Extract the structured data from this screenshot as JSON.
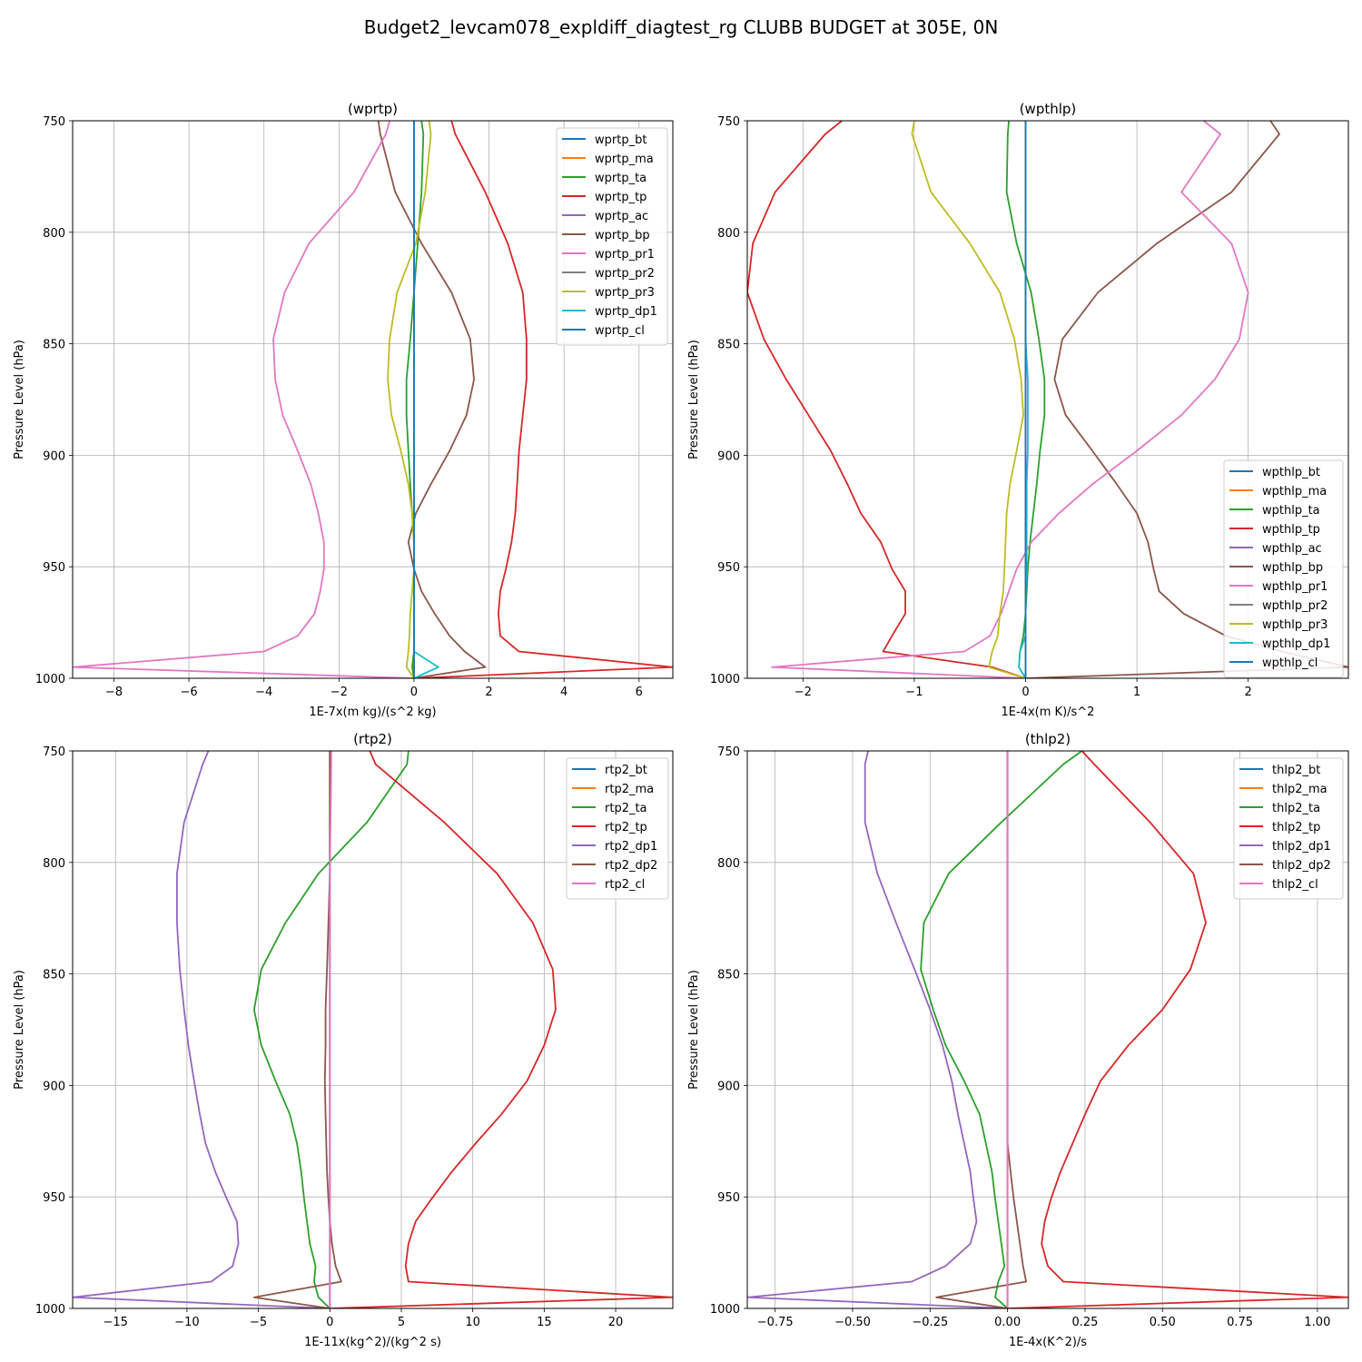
{
  "figure": {
    "suptitle": "Budget2_levcam078_expldiff_diagtest_rg CLUBB BUDGET at 305E, 0N"
  },
  "chart_data": [
    {
      "type": "line",
      "title": "(wprtp)",
      "xlabel": "1E-7x(m kg)/(s^2 kg)",
      "ylabel": "Pressure Level (hPa)",
      "xlim": [
        -9.1,
        6.9
      ],
      "ylim": [
        1000,
        750
      ],
      "xticks": [
        -8,
        -6,
        -4,
        -2,
        0,
        2,
        4,
        6
      ],
      "yticks": [
        750,
        800,
        850,
        900,
        950,
        1000
      ],
      "grid": true,
      "legend_position": "top-right",
      "y": [
        750,
        756,
        782,
        805,
        827,
        848,
        866,
        882,
        898,
        913,
        926,
        939,
        951,
        961,
        971,
        981,
        988,
        995,
        1000
      ],
      "series": [
        {
          "name": "wprtp_bt",
          "color": "#1f77b4",
          "values": [
            0,
            0,
            0,
            0,
            0,
            0,
            0,
            0,
            0,
            0,
            0,
            0,
            0,
            0,
            0,
            0,
            0,
            0,
            0
          ]
        },
        {
          "name": "wprtp_ma",
          "color": "#ff7f0e",
          "values": [
            0,
            0,
            0,
            0,
            0,
            0,
            0,
            0,
            0,
            0,
            0,
            0,
            0,
            0,
            0,
            0,
            0,
            0,
            0
          ]
        },
        {
          "name": "wprtp_ta",
          "color": "#2ca02c",
          "values": [
            0.2,
            0.25,
            0.2,
            0.1,
            0,
            -0.1,
            -0.2,
            -0.2,
            -0.15,
            -0.1,
            -0.05,
            0,
            0,
            0,
            0,
            0,
            0,
            -0.05,
            0
          ]
        },
        {
          "name": "wprtp_tp",
          "color": "#d62728",
          "values": [
            1.0,
            1.1,
            1.9,
            2.5,
            2.9,
            3.0,
            3.0,
            2.9,
            2.8,
            2.75,
            2.7,
            2.6,
            2.45,
            2.3,
            2.25,
            2.3,
            2.8,
            6.9,
            0
          ]
        },
        {
          "name": "wprtp_ac",
          "color": "#9467bd",
          "values": [
            0,
            0,
            0,
            0,
            0,
            0,
            0,
            0,
            0,
            0,
            0,
            0,
            0,
            0,
            0,
            0,
            0,
            0,
            0
          ]
        },
        {
          "name": "wprtp_bp",
          "color": "#8c564b",
          "values": [
            -0.95,
            -0.9,
            -0.5,
            0.2,
            1.0,
            1.5,
            1.6,
            1.4,
            0.95,
            0.45,
            0.05,
            -0.15,
            0,
            0.2,
            0.55,
            0.95,
            1.35,
            1.9,
            0
          ]
        },
        {
          "name": "wprtp_pr1",
          "color": "#e377c2",
          "values": [
            -0.65,
            -0.75,
            -1.6,
            -2.8,
            -3.45,
            -3.75,
            -3.7,
            -3.5,
            -3.1,
            -2.75,
            -2.55,
            -2.4,
            -2.4,
            -2.5,
            -2.65,
            -3.1,
            -4.0,
            -9.1,
            0
          ]
        },
        {
          "name": "wprtp_pr2",
          "color": "#7f7f7f",
          "values": [
            0,
            0,
            0,
            0,
            0,
            0,
            0,
            0,
            0,
            0,
            0,
            0,
            0,
            0,
            0,
            0,
            0,
            0,
            0
          ]
        },
        {
          "name": "wprtp_pr3",
          "color": "#bcbd22",
          "values": [
            0.4,
            0.45,
            0.3,
            0.05,
            -0.45,
            -0.65,
            -0.7,
            -0.6,
            -0.35,
            -0.15,
            -0.05,
            0,
            0,
            -0.05,
            -0.1,
            -0.12,
            -0.15,
            -0.2,
            0
          ]
        },
        {
          "name": "wprtp_dp1",
          "color": "#17becf",
          "values": [
            0,
            0,
            0,
            0,
            0,
            0,
            0,
            0,
            0,
            0,
            0,
            0,
            0,
            0,
            0,
            0,
            0,
            0.65,
            0
          ]
        },
        {
          "name": "wprtp_cl",
          "color": "#1f77b4",
          "values": [
            0,
            0,
            0,
            0,
            0,
            0,
            0,
            0,
            0,
            0,
            0,
            0,
            0,
            0,
            0,
            0,
            0,
            0,
            0
          ]
        }
      ]
    },
    {
      "type": "line",
      "title": "(wpthlp)",
      "xlabel": "1E-4x(m K)/s^2",
      "ylabel": "Pressure Level (hPa)",
      "xlim": [
        -2.5,
        2.9
      ],
      "ylim": [
        1000,
        750
      ],
      "xticks": [
        -2,
        -1,
        0,
        1,
        2
      ],
      "yticks": [
        750,
        800,
        850,
        900,
        950,
        1000
      ],
      "grid": true,
      "legend_position": "bottom-right",
      "y": [
        750,
        756,
        782,
        805,
        827,
        848,
        866,
        882,
        898,
        913,
        926,
        939,
        951,
        961,
        971,
        981,
        988,
        995,
        1000
      ],
      "series": [
        {
          "name": "wpthlp_bt",
          "color": "#1f77b4",
          "values": [
            0,
            0,
            0,
            0,
            0,
            0,
            0,
            0,
            0,
            0,
            0,
            0,
            0,
            0,
            0,
            0,
            0,
            0,
            0
          ]
        },
        {
          "name": "wpthlp_ma",
          "color": "#ff7f0e",
          "values": [
            0,
            0,
            0,
            0,
            0,
            0,
            0,
            0,
            0,
            0,
            0,
            0,
            0,
            0,
            0,
            0,
            0,
            0,
            0
          ]
        },
        {
          "name": "wpthlp_ta",
          "color": "#2ca02c",
          "values": [
            -0.15,
            -0.16,
            -0.17,
            -0.08,
            0.05,
            0.12,
            0.17,
            0.17,
            0.13,
            0.1,
            0.07,
            0.04,
            0.02,
            0.01,
            0,
            -0.02,
            -0.05,
            -0.06,
            0
          ]
        },
        {
          "name": "wpthlp_tp",
          "color": "#d62728",
          "values": [
            -1.65,
            -1.8,
            -2.25,
            -2.45,
            -2.5,
            -2.35,
            -2.15,
            -1.95,
            -1.75,
            -1.6,
            -1.48,
            -1.3,
            -1.2,
            -1.08,
            -1.08,
            -1.2,
            -1.28,
            -0.3,
            0
          ]
        },
        {
          "name": "wpthlp_ac",
          "color": "#9467bd",
          "values": [
            0,
            0,
            0,
            0,
            0,
            0,
            0,
            0,
            0,
            0,
            0,
            0,
            0,
            0,
            0,
            0,
            0,
            0,
            0
          ]
        },
        {
          "name": "wpthlp_bp",
          "color": "#8c564b",
          "values": [
            2.2,
            2.28,
            1.85,
            1.18,
            0.65,
            0.33,
            0.26,
            0.36,
            0.6,
            0.82,
            1.0,
            1.1,
            1.15,
            1.2,
            1.42,
            1.8,
            2.3,
            2.9,
            0
          ]
        },
        {
          "name": "wpthlp_pr1",
          "color": "#e377c2",
          "values": [
            1.6,
            1.75,
            1.4,
            1.85,
            2.0,
            1.92,
            1.7,
            1.4,
            1.0,
            0.6,
            0.3,
            0.05,
            -0.08,
            -0.15,
            -0.22,
            -0.32,
            -0.55,
            -2.28,
            0
          ]
        },
        {
          "name": "wpthlp_pr2",
          "color": "#7f7f7f",
          "values": [
            0,
            0,
            0,
            0,
            0,
            0,
            0,
            0,
            0,
            0,
            0,
            0,
            0,
            0,
            0,
            0,
            0,
            0,
            0
          ]
        },
        {
          "name": "wpthlp_pr3",
          "color": "#bcbd22",
          "values": [
            -1.0,
            -1.02,
            -0.85,
            -0.5,
            -0.23,
            -0.1,
            -0.04,
            -0.02,
            -0.08,
            -0.14,
            -0.17,
            -0.18,
            -0.19,
            -0.2,
            -0.23,
            -0.25,
            -0.3,
            -0.33,
            0
          ]
        },
        {
          "name": "wpthlp_dp1",
          "color": "#17becf",
          "values": [
            0,
            0,
            0,
            0,
            0,
            0,
            0.02,
            0.02,
            0.02,
            0.01,
            0.01,
            0.01,
            0.01,
            0,
            0,
            0,
            -0.05,
            -0.06,
            0
          ]
        },
        {
          "name": "wpthlp_cl",
          "color": "#1f77b4",
          "values": [
            0,
            0,
            0,
            0,
            0,
            0,
            0,
            0,
            0,
            0,
            0,
            0,
            0,
            0,
            0,
            0,
            0,
            0,
            0
          ]
        }
      ]
    },
    {
      "type": "line",
      "title": "(rtp2)",
      "xlabel": "1E-11x(kg^2)/(kg^2 s)",
      "ylabel": "Pressure Level (hPa)",
      "xlim": [
        -18,
        24
      ],
      "ylim": [
        1000,
        750
      ],
      "xticks": [
        -15,
        -10,
        -5,
        0,
        5,
        10,
        15,
        20
      ],
      "yticks": [
        750,
        800,
        850,
        900,
        950,
        1000
      ],
      "grid": true,
      "legend_position": "top-right",
      "y": [
        750,
        756,
        782,
        805,
        827,
        848,
        866,
        882,
        898,
        913,
        926,
        939,
        951,
        961,
        971,
        981,
        988,
        995,
        1000
      ],
      "series": [
        {
          "name": "rtp2_bt",
          "color": "#1f77b4",
          "values": [
            0,
            0,
            0,
            0,
            0,
            0,
            0,
            0,
            0,
            0,
            0,
            0,
            0,
            0,
            0,
            0,
            0,
            0,
            0
          ]
        },
        {
          "name": "rtp2_ma",
          "color": "#ff7f0e",
          "values": [
            0,
            0,
            0,
            0,
            0,
            0,
            0,
            0,
            0,
            0,
            0,
            0,
            0,
            0,
            0,
            0,
            0,
            0,
            0
          ]
        },
        {
          "name": "rtp2_ta",
          "color": "#2ca02c",
          "values": [
            5.5,
            5.4,
            2.6,
            -0.8,
            -3.1,
            -4.8,
            -5.3,
            -4.8,
            -3.8,
            -2.8,
            -2.3,
            -2.0,
            -1.8,
            -1.6,
            -1.4,
            -1.0,
            -1.1,
            -0.8,
            0
          ]
        },
        {
          "name": "rtp2_tp",
          "color": "#d62728",
          "values": [
            2.8,
            3.2,
            8.0,
            11.7,
            14.2,
            15.6,
            15.8,
            15.0,
            13.8,
            12.0,
            10.2,
            8.5,
            7.1,
            6.0,
            5.5,
            5.3,
            5.5,
            24,
            0
          ]
        },
        {
          "name": "rtp2_dp1",
          "color": "#9467bd",
          "values": [
            -8.5,
            -8.9,
            -10.2,
            -10.7,
            -10.7,
            -10.5,
            -10.2,
            -9.9,
            -9.5,
            -9.1,
            -8.7,
            -8.0,
            -7.2,
            -6.5,
            -6.4,
            -6.8,
            -8.3,
            -18,
            0
          ]
        },
        {
          "name": "rtp2_dp2",
          "color": "#8c564b",
          "values": [
            0,
            0,
            0,
            0,
            -0.1,
            -0.2,
            -0.3,
            -0.3,
            -0.35,
            -0.3,
            -0.25,
            -0.2,
            -0.1,
            0,
            0.15,
            0.4,
            0.8,
            -5.3,
            0
          ]
        },
        {
          "name": "rtp2_cl",
          "color": "#e377c2",
          "values": [
            0.1,
            0.1,
            0.05,
            0,
            0,
            0,
            0,
            0,
            0,
            0,
            0,
            0,
            0,
            0,
            0,
            0,
            0,
            0,
            0
          ]
        }
      ]
    },
    {
      "type": "line",
      "title": "(thlp2)",
      "xlabel": "1E-4x(K^2)/s",
      "ylabel": "Pressure Level (hPa)",
      "xlim": [
        -0.84,
        1.1
      ],
      "ylim": [
        1000,
        750
      ],
      "xticks": [
        -0.75,
        -0.5,
        -0.25,
        0.0,
        0.25,
        0.5,
        0.75,
        1.0
      ],
      "xticklabels": [
        "−0.75",
        "−0.50",
        "−0.25",
        "0.00",
        "0.25",
        "0.50",
        "0.75",
        "1.00"
      ],
      "yticks": [
        750,
        800,
        850,
        900,
        950,
        1000
      ],
      "grid": true,
      "legend_position": "top-right",
      "y": [
        750,
        756,
        782,
        805,
        827,
        848,
        866,
        882,
        898,
        913,
        926,
        939,
        951,
        961,
        971,
        981,
        988,
        995,
        1000
      ],
      "series": [
        {
          "name": "thlp2_bt",
          "color": "#1f77b4",
          "values": [
            0,
            0,
            0,
            0,
            0,
            0,
            0,
            0,
            0,
            0,
            0,
            0,
            0,
            0,
            0,
            0,
            0,
            0,
            0
          ]
        },
        {
          "name": "thlp2_ma",
          "color": "#ff7f0e",
          "values": [
            0,
            0,
            0,
            0,
            0,
            0,
            0,
            0,
            0,
            0,
            0,
            0,
            0,
            0,
            0,
            0,
            0,
            0,
            0
          ]
        },
        {
          "name": "thlp2_ta",
          "color": "#2ca02c",
          "values": [
            0.24,
            0.18,
            -0.02,
            -0.19,
            -0.27,
            -0.28,
            -0.24,
            -0.2,
            -0.14,
            -0.09,
            -0.07,
            -0.05,
            -0.04,
            -0.03,
            -0.02,
            -0.01,
            -0.03,
            -0.04,
            0
          ]
        },
        {
          "name": "thlp2_tp",
          "color": "#d62728",
          "values": [
            0.24,
            0.28,
            0.46,
            0.6,
            0.64,
            0.59,
            0.5,
            0.39,
            0.3,
            0.25,
            0.21,
            0.17,
            0.14,
            0.12,
            0.11,
            0.13,
            0.18,
            1.1,
            0
          ]
        },
        {
          "name": "thlp2_dp1",
          "color": "#9467bd",
          "values": [
            -0.45,
            -0.46,
            -0.46,
            -0.42,
            -0.36,
            -0.3,
            -0.25,
            -0.21,
            -0.18,
            -0.16,
            -0.14,
            -0.12,
            -0.11,
            -0.1,
            -0.12,
            -0.2,
            -0.31,
            -0.84,
            0
          ]
        },
        {
          "name": "thlp2_dp2",
          "color": "#8c564b",
          "values": [
            0,
            0,
            0,
            0,
            0,
            0,
            0,
            0,
            0,
            0,
            0,
            0.01,
            0.02,
            0.03,
            0.04,
            0.05,
            0.06,
            -0.23,
            0
          ]
        },
        {
          "name": "thlp2_cl",
          "color": "#e377c2",
          "values": [
            0,
            0,
            0,
            0,
            0,
            0,
            0,
            0,
            0,
            0,
            0,
            0,
            0,
            0,
            0,
            0,
            0,
            0,
            0
          ]
        }
      ]
    }
  ]
}
